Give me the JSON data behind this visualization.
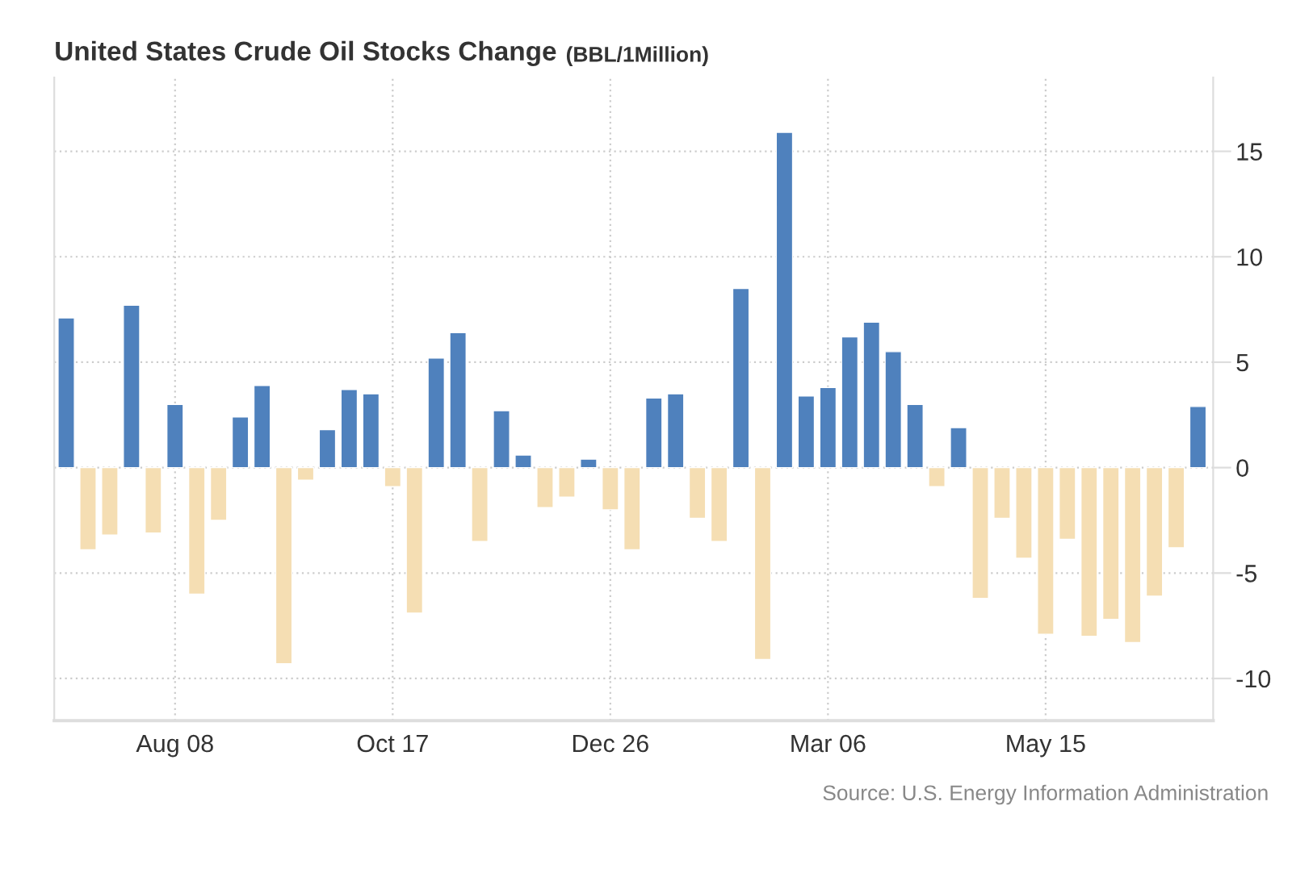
{
  "chart_data": {
    "type": "bar",
    "title": "United States Crude Oil Stocks Change",
    "subtitle": "(BBL/1Million)",
    "categories": [
      null,
      null,
      null,
      null,
      null,
      "Aug 08",
      null,
      null,
      null,
      null,
      null,
      null,
      null,
      null,
      null,
      "Oct 17",
      null,
      null,
      null,
      null,
      null,
      null,
      null,
      null,
      null,
      "Dec 26",
      null,
      null,
      null,
      null,
      null,
      null,
      null,
      null,
      null,
      "Mar 06",
      null,
      null,
      null,
      null,
      null,
      null,
      null,
      null,
      null,
      "May 15",
      null,
      null,
      null,
      null,
      null,
      null,
      null
    ],
    "values": [
      7.1,
      -3.9,
      -3.2,
      7.7,
      -3.1,
      3.0,
      -6.0,
      -2.5,
      2.4,
      3.9,
      -9.3,
      -0.6,
      1.8,
      3.7,
      3.5,
      -0.9,
      -6.9,
      5.2,
      6.4,
      -3.5,
      2.7,
      0.6,
      -1.9,
      -1.4,
      0.4,
      -2.0,
      -3.9,
      3.3,
      3.5,
      -2.4,
      -3.5,
      8.5,
      -9.1,
      15.9,
      3.4,
      3.8,
      6.2,
      6.9,
      5.5,
      3.0,
      -0.9,
      1.9,
      -6.2,
      -2.4,
      -4.3,
      -7.9,
      -3.4,
      -8.0,
      -7.2,
      -8.3,
      -6.1,
      -3.8,
      2.9
    ],
    "colors": [
      "#4f81bd",
      "#f5deb3",
      "#f5deb3",
      "#4f81bd",
      "#f5deb3",
      "#4f81bd",
      "#f5deb3",
      "#f5deb3",
      "#4f81bd",
      "#4f81bd",
      "#f5deb3",
      "#f5deb3",
      "#4f81bd",
      "#4f81bd",
      "#4f81bd",
      "#f5deb3",
      "#f5deb3",
      "#4f81bd",
      "#4f81bd",
      "#f5deb3",
      "#4f81bd",
      "#4f81bd",
      "#f5deb3",
      "#f5deb3",
      "#4f81bd",
      "#f5deb3",
      "#f5deb3",
      "#4f81bd",
      "#4f81bd",
      "#f5deb3",
      "#f5deb3",
      "#4f81bd",
      "#f5deb3",
      "#4f81bd",
      "#4f81bd",
      "#4f81bd",
      "#4f81bd",
      "#4f81bd",
      "#4f81bd",
      "#4f81bd",
      "#f5deb3",
      "#4f81bd",
      "#f5deb3",
      "#f5deb3",
      "#f5deb3",
      "#f5deb3",
      "#f5deb3",
      "#f5deb3",
      "#f5deb3",
      "#f5deb3",
      "#f5deb3",
      "#f5deb3",
      "#4f81bd"
    ],
    "ylim": [
      -12,
      18.5
    ],
    "yticks": [
      -10,
      -5,
      0,
      5,
      10,
      15
    ],
    "grid": true,
    "annotations": [
      "Source: U.S. Energy Information Administration"
    ]
  }
}
